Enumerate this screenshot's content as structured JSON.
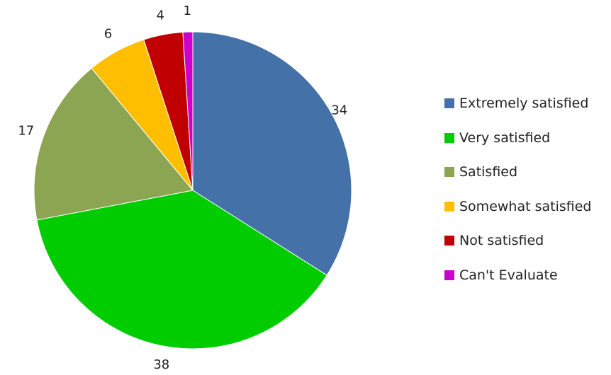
{
  "chart_data": {
    "type": "pie",
    "title": "",
    "categories": [
      "Extremely satisfied",
      "Very satisfied",
      "Satisfied",
      "Somewhat satisfied",
      "Not satisfied",
      "Can't Evaluate"
    ],
    "values": [
      34,
      38,
      17,
      6,
      4,
      1
    ],
    "colors": [
      "#4472A8",
      "#00CC00",
      "#8BA552",
      "#FFBF00",
      "#C00000",
      "#CC00CC"
    ],
    "legend_position": "right",
    "start_angle": "12 o'clock",
    "direction": "clockwise"
  }
}
